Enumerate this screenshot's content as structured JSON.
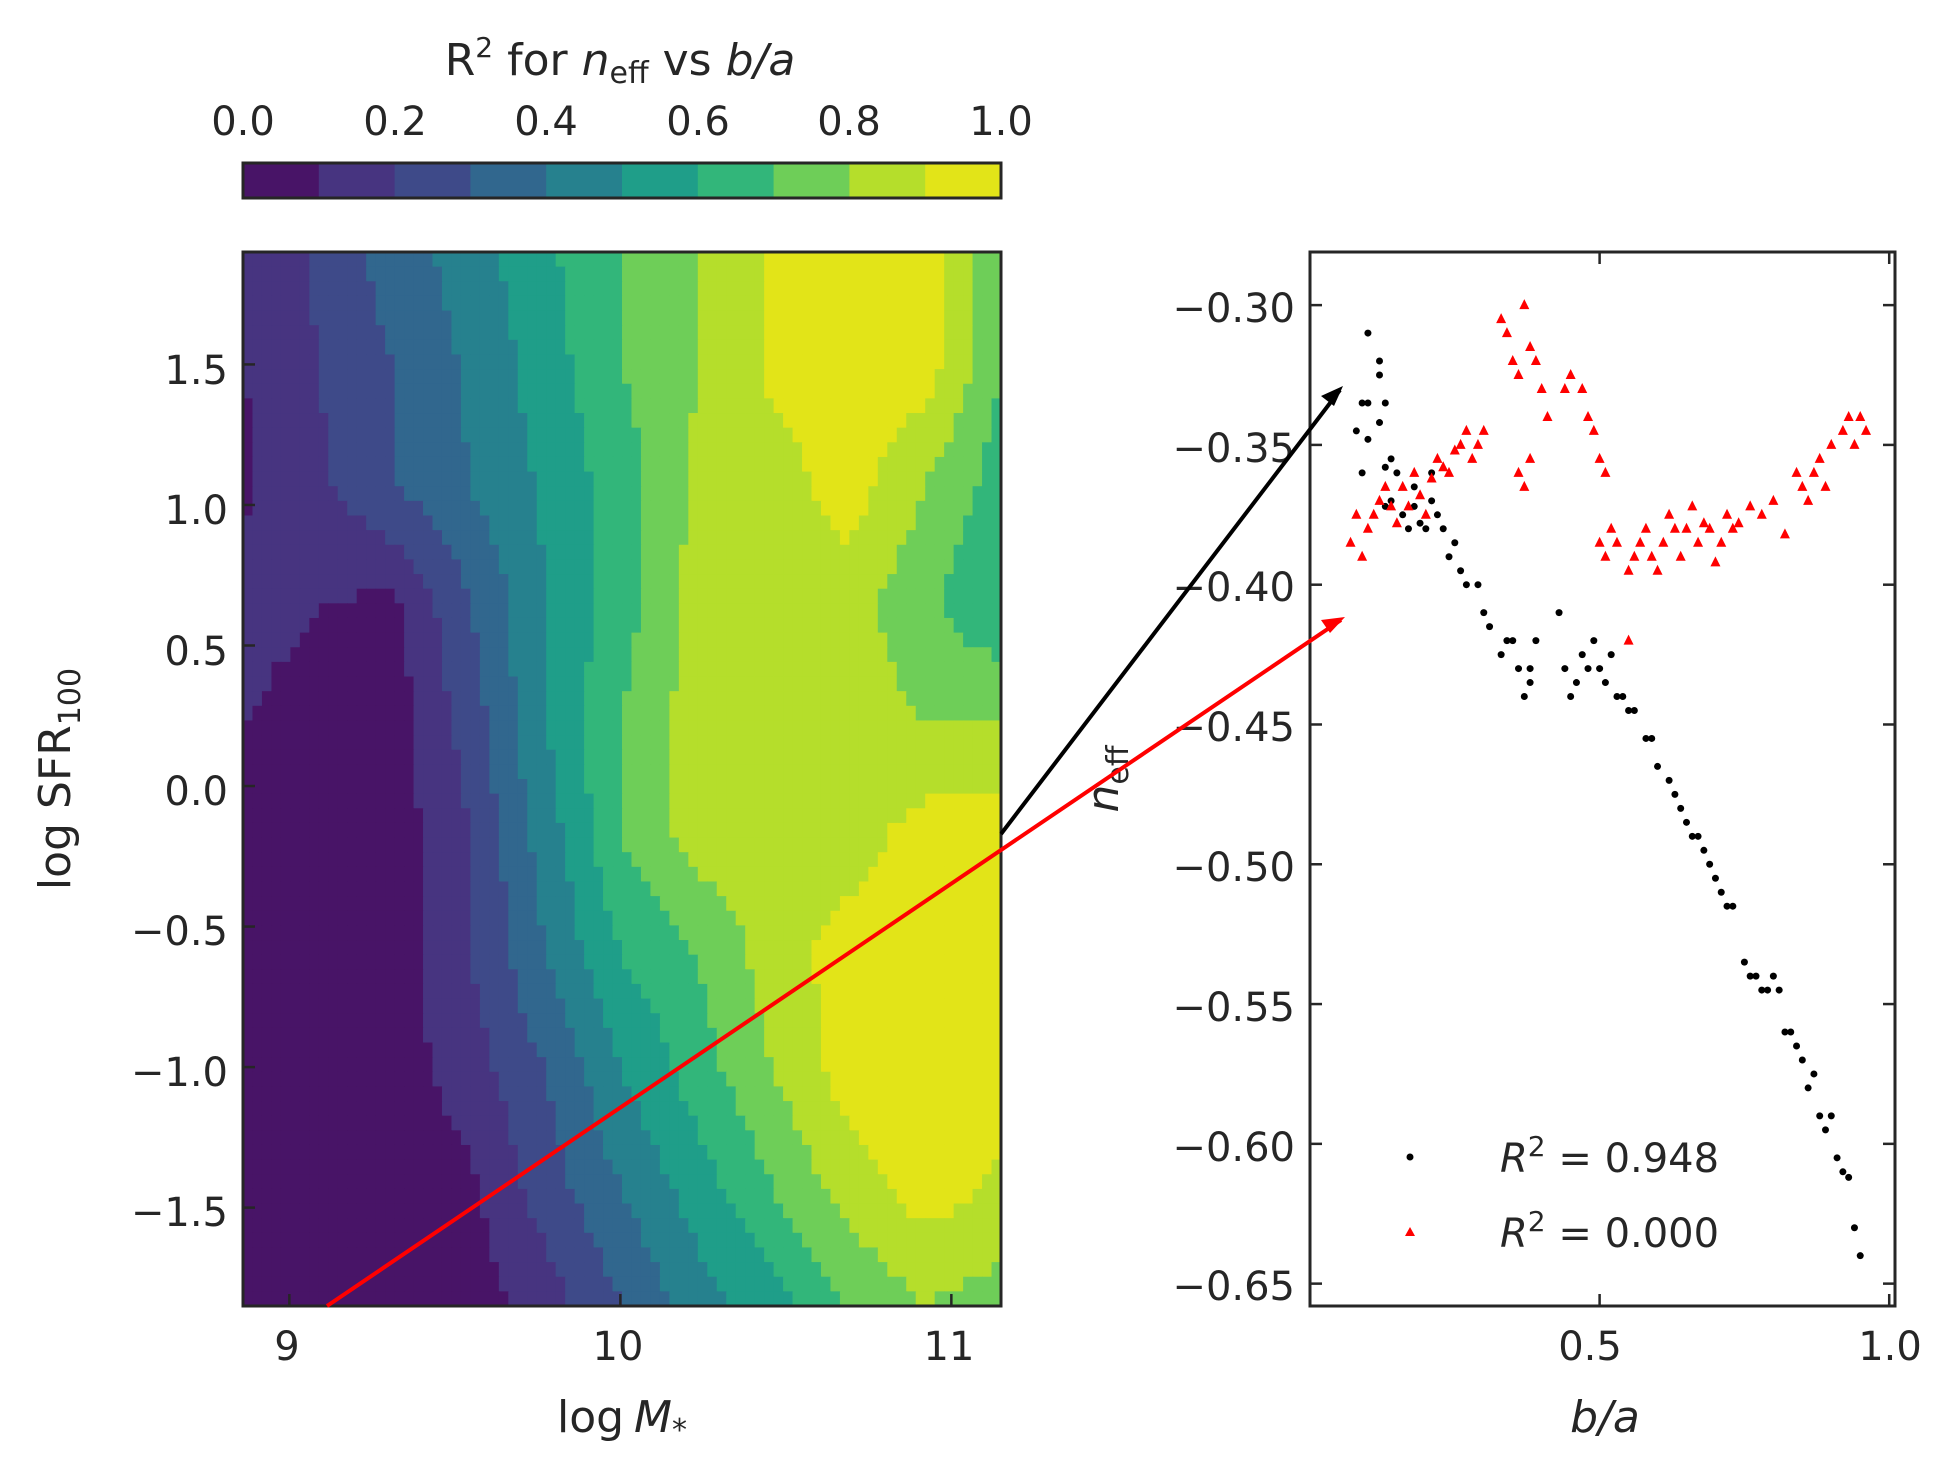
{
  "colors": {
    "viridis": [
      "#481467",
      "#473480",
      "#3e4a89",
      "#31678e",
      "#26818e",
      "#1f9e89",
      "#32b67a",
      "#6ece58",
      "#b5de2b",
      "#e2e418"
    ],
    "black_series": "#000000",
    "red_series": "#ff0000",
    "axis": "#262626"
  },
  "chart_data": [
    {
      "type": "heatmap",
      "subtype": "filled-contour",
      "colorbar": {
        "label": "R",
        "label_sup": "2",
        "label_mid": " for ",
        "label_var": "n",
        "label_var_sub": "eff",
        "label_vs": " vs ",
        "label_ba": "b/a",
        "ticks": [
          "0.0",
          "0.2",
          "0.4",
          "0.6",
          "0.8",
          "1.0"
        ],
        "range": [
          0,
          1
        ],
        "levels": 10,
        "placement": "top"
      },
      "xlabel_pre": "log",
      "xlabel_var": "M",
      "xlabel_sub": "*",
      "ylabel_pre": "log  SFR",
      "ylabel_sub": "100",
      "xlim": [
        8.86,
        11.15
      ],
      "ylim": [
        -1.85,
        1.9
      ],
      "xticks": [
        9,
        10,
        11
      ],
      "xtick_labels": [
        "9",
        "10",
        "11"
      ],
      "yticks": [
        1.5,
        1.0,
        0.5,
        0.0,
        -0.5,
        -1.0,
        -1.5
      ],
      "ytick_labels": [
        "1.5",
        "1.0",
        "0.5",
        "0.0",
        "−0.5",
        "−1.0",
        "−1.5"
      ],
      "grid": false,
      "z_grid": [
        [
          0.1,
          0.22,
          0.35,
          0.45,
          0.58,
          0.7,
          0.8,
          0.92,
          0.95,
          0.95,
          0.72
        ],
        [
          0.1,
          0.2,
          0.3,
          0.42,
          0.55,
          0.7,
          0.8,
          0.92,
          0.95,
          0.95,
          0.7
        ],
        [
          0.08,
          0.18,
          0.3,
          0.4,
          0.52,
          0.65,
          0.82,
          0.85,
          0.95,
          0.8,
          0.65
        ],
        [
          0.15,
          0.1,
          0.08,
          0.3,
          0.5,
          0.65,
          0.85,
          0.85,
          0.85,
          0.72,
          0.6
        ],
        [
          0.1,
          0.05,
          0.05,
          0.25,
          0.5,
          0.7,
          0.85,
          0.85,
          0.85,
          0.8,
          0.8
        ],
        [
          0.08,
          0.05,
          0.05,
          0.2,
          0.45,
          0.7,
          0.85,
          0.85,
          0.85,
          0.95,
          0.95
        ],
        [
          0.05,
          0.05,
          0.05,
          0.2,
          0.4,
          0.6,
          0.7,
          0.85,
          0.95,
          0.95,
          0.95
        ],
        [
          0.05,
          0.05,
          0.05,
          0.15,
          0.3,
          0.5,
          0.65,
          0.8,
          0.95,
          0.95,
          0.95
        ],
        [
          0.05,
          0.05,
          0.05,
          0.08,
          0.25,
          0.4,
          0.55,
          0.7,
          0.85,
          0.95,
          0.88
        ],
        [
          0.05,
          0.05,
          0.05,
          0.05,
          0.15,
          0.3,
          0.45,
          0.55,
          0.7,
          0.8,
          0.75
        ]
      ]
    },
    {
      "type": "scatter",
      "xlabel": "b/a",
      "ylabel_var": "n",
      "ylabel_sub": "eff",
      "xlim": [
        0.0,
        1.01
      ],
      "ylim": [
        -0.658,
        -0.281
      ],
      "xticks": [
        0.5,
        1.0
      ],
      "xtick_labels": [
        "0.5",
        "1.0"
      ],
      "yticks": [
        -0.3,
        -0.35,
        -0.4,
        -0.45,
        -0.5,
        -0.55,
        -0.6,
        -0.65
      ],
      "ytick_labels": [
        "−0.30",
        "−0.35",
        "−0.40",
        "−0.45",
        "−0.50",
        "−0.55",
        "−0.60",
        "−0.65"
      ],
      "legend_placement": "lower-right",
      "series": [
        {
          "name": "R² = 0.948",
          "legend_var": "R",
          "legend_sup": "2",
          "legend_val": " = 0.948",
          "marker": "circle",
          "color": "#000000",
          "points": [
            [
              0.1,
              -0.31
            ],
            [
              0.12,
              -0.32
            ],
            [
              0.12,
              -0.325
            ],
            [
              0.09,
              -0.335
            ],
            [
              0.1,
              -0.335
            ],
            [
              0.13,
              -0.335
            ],
            [
              0.08,
              -0.345
            ],
            [
              0.1,
              -0.348
            ],
            [
              0.12,
              -0.342
            ],
            [
              0.09,
              -0.36
            ],
            [
              0.13,
              -0.358
            ],
            [
              0.14,
              -0.355
            ],
            [
              0.15,
              -0.36
            ],
            [
              0.13,
              -0.372
            ],
            [
              0.14,
              -0.37
            ],
            [
              0.16,
              -0.375
            ],
            [
              0.17,
              -0.38
            ],
            [
              0.18,
              -0.365
            ],
            [
              0.18,
              -0.372
            ],
            [
              0.19,
              -0.378
            ],
            [
              0.2,
              -0.38
            ],
            [
              0.21,
              -0.36
            ],
            [
              0.21,
              -0.37
            ],
            [
              0.22,
              -0.375
            ],
            [
              0.23,
              -0.38
            ],
            [
              0.24,
              -0.39
            ],
            [
              0.25,
              -0.385
            ],
            [
              0.26,
              -0.395
            ],
            [
              0.27,
              -0.4
            ],
            [
              0.29,
              -0.4
            ],
            [
              0.3,
              -0.41
            ],
            [
              0.31,
              -0.415
            ],
            [
              0.33,
              -0.425
            ],
            [
              0.34,
              -0.42
            ],
            [
              0.35,
              -0.42
            ],
            [
              0.36,
              -0.43
            ],
            [
              0.37,
              -0.44
            ],
            [
              0.38,
              -0.435
            ],
            [
              0.38,
              -0.43
            ],
            [
              0.39,
              -0.42
            ],
            [
              0.43,
              -0.41
            ],
            [
              0.44,
              -0.43
            ],
            [
              0.45,
              -0.44
            ],
            [
              0.46,
              -0.435
            ],
            [
              0.47,
              -0.425
            ],
            [
              0.48,
              -0.43
            ],
            [
              0.49,
              -0.42
            ],
            [
              0.5,
              -0.43
            ],
            [
              0.51,
              -0.435
            ],
            [
              0.52,
              -0.425
            ],
            [
              0.53,
              -0.44
            ],
            [
              0.54,
              -0.44
            ],
            [
              0.55,
              -0.445
            ],
            [
              0.56,
              -0.445
            ],
            [
              0.58,
              -0.455
            ],
            [
              0.59,
              -0.455
            ],
            [
              0.6,
              -0.465
            ],
            [
              0.62,
              -0.47
            ],
            [
              0.63,
              -0.475
            ],
            [
              0.64,
              -0.48
            ],
            [
              0.65,
              -0.485
            ],
            [
              0.66,
              -0.49
            ],
            [
              0.67,
              -0.49
            ],
            [
              0.68,
              -0.495
            ],
            [
              0.69,
              -0.5
            ],
            [
              0.7,
              -0.505
            ],
            [
              0.71,
              -0.51
            ],
            [
              0.72,
              -0.515
            ],
            [
              0.73,
              -0.515
            ],
            [
              0.75,
              -0.535
            ],
            [
              0.76,
              -0.54
            ],
            [
              0.77,
              -0.54
            ],
            [
              0.78,
              -0.545
            ],
            [
              0.79,
              -0.545
            ],
            [
              0.8,
              -0.54
            ],
            [
              0.81,
              -0.545
            ],
            [
              0.82,
              -0.56
            ],
            [
              0.83,
              -0.56
            ],
            [
              0.84,
              -0.565
            ],
            [
              0.85,
              -0.57
            ],
            [
              0.86,
              -0.58
            ],
            [
              0.87,
              -0.575
            ],
            [
              0.88,
              -0.59
            ],
            [
              0.89,
              -0.595
            ],
            [
              0.9,
              -0.59
            ],
            [
              0.91,
              -0.605
            ],
            [
              0.92,
              -0.61
            ],
            [
              0.93,
              -0.612
            ],
            [
              0.94,
              -0.63
            ],
            [
              0.95,
              -0.64
            ]
          ]
        },
        {
          "name": "R² = 0.000",
          "legend_var": "R",
          "legend_sup": "2",
          "legend_val": " = 0.000",
          "marker": "triangle",
          "color": "#ff0000",
          "points": [
            [
              0.07,
              -0.385
            ],
            [
              0.08,
              -0.375
            ],
            [
              0.09,
              -0.39
            ],
            [
              0.1,
              -0.38
            ],
            [
              0.11,
              -0.375
            ],
            [
              0.12,
              -0.37
            ],
            [
              0.13,
              -0.365
            ],
            [
              0.14,
              -0.372
            ],
            [
              0.15,
              -0.378
            ],
            [
              0.16,
              -0.365
            ],
            [
              0.17,
              -0.372
            ],
            [
              0.18,
              -0.36
            ],
            [
              0.19,
              -0.368
            ],
            [
              0.2,
              -0.375
            ],
            [
              0.21,
              -0.362
            ],
            [
              0.22,
              -0.355
            ],
            [
              0.23,
              -0.358
            ],
            [
              0.24,
              -0.36
            ],
            [
              0.25,
              -0.352
            ],
            [
              0.26,
              -0.35
            ],
            [
              0.27,
              -0.345
            ],
            [
              0.28,
              -0.355
            ],
            [
              0.29,
              -0.35
            ],
            [
              0.3,
              -0.345
            ],
            [
              0.33,
              -0.305
            ],
            [
              0.34,
              -0.31
            ],
            [
              0.35,
              -0.32
            ],
            [
              0.36,
              -0.325
            ],
            [
              0.37,
              -0.3
            ],
            [
              0.38,
              -0.315
            ],
            [
              0.39,
              -0.32
            ],
            [
              0.4,
              -0.33
            ],
            [
              0.41,
              -0.34
            ],
            [
              0.36,
              -0.36
            ],
            [
              0.37,
              -0.365
            ],
            [
              0.38,
              -0.355
            ],
            [
              0.44,
              -0.33
            ],
            [
              0.45,
              -0.325
            ],
            [
              0.47,
              -0.33
            ],
            [
              0.48,
              -0.34
            ],
            [
              0.49,
              -0.345
            ],
            [
              0.5,
              -0.355
            ],
            [
              0.51,
              -0.36
            ],
            [
              0.5,
              -0.385
            ],
            [
              0.51,
              -0.39
            ],
            [
              0.52,
              -0.38
            ],
            [
              0.53,
              -0.385
            ],
            [
              0.55,
              -0.395
            ],
            [
              0.56,
              -0.39
            ],
            [
              0.57,
              -0.385
            ],
            [
              0.58,
              -0.38
            ],
            [
              0.59,
              -0.39
            ],
            [
              0.6,
              -0.395
            ],
            [
              0.61,
              -0.385
            ],
            [
              0.62,
              -0.375
            ],
            [
              0.63,
              -0.38
            ],
            [
              0.64,
              -0.39
            ],
            [
              0.65,
              -0.38
            ],
            [
              0.66,
              -0.372
            ],
            [
              0.67,
              -0.385
            ],
            [
              0.68,
              -0.378
            ],
            [
              0.69,
              -0.38
            ],
            [
              0.7,
              -0.392
            ],
            [
              0.71,
              -0.385
            ],
            [
              0.72,
              -0.375
            ],
            [
              0.73,
              -0.38
            ],
            [
              0.74,
              -0.378
            ],
            [
              0.76,
              -0.372
            ],
            [
              0.78,
              -0.375
            ],
            [
              0.8,
              -0.37
            ],
            [
              0.82,
              -0.382
            ],
            [
              0.84,
              -0.36
            ],
            [
              0.85,
              -0.365
            ],
            [
              0.86,
              -0.37
            ],
            [
              0.87,
              -0.36
            ],
            [
              0.88,
              -0.355
            ],
            [
              0.89,
              -0.365
            ],
            [
              0.9,
              -0.35
            ],
            [
              0.92,
              -0.345
            ],
            [
              0.93,
              -0.34
            ],
            [
              0.94,
              -0.35
            ],
            [
              0.95,
              -0.34
            ],
            [
              0.96,
              -0.345
            ],
            [
              0.55,
              -0.42
            ]
          ]
        }
      ]
    }
  ],
  "annotations": {
    "arrows": [
      {
        "color": "#000000",
        "from": "left-panel-edge",
        "to": "black-series-point"
      },
      {
        "color": "#ff0000",
        "from": "left-panel-bottom",
        "to": "red-series-point"
      }
    ]
  }
}
